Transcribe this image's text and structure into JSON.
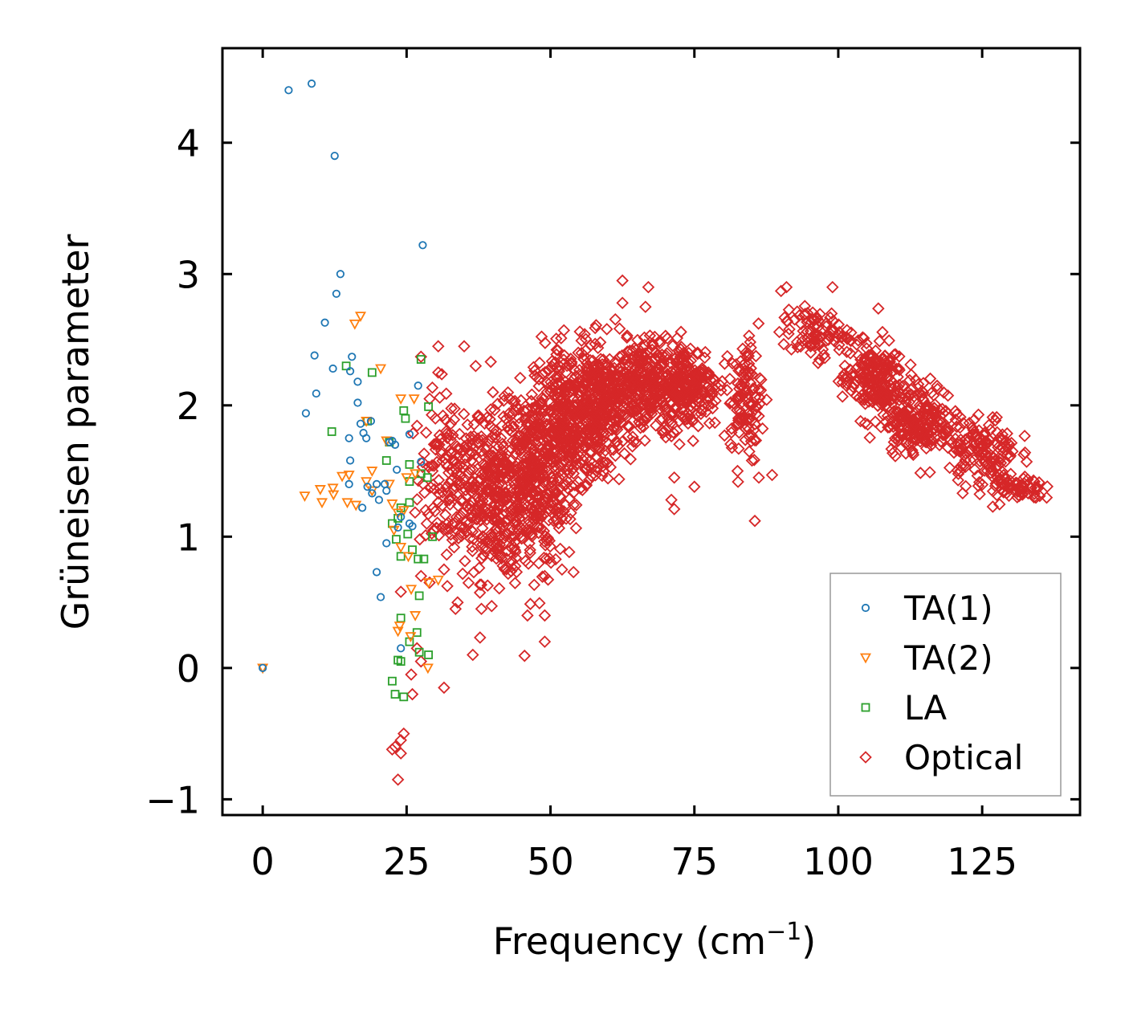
{
  "chart_data": {
    "type": "scatter",
    "title": "",
    "xlabel": "Frequency (cm",
    "xlabel_sup": "−1",
    "xlabel_close": ")",
    "ylabel": "Grüneisen parameter",
    "xlim": [
      -7,
      142
    ],
    "ylim": [
      -1.12,
      4.72
    ],
    "xticks": [
      0,
      25,
      50,
      75,
      100,
      125
    ],
    "yticks": [
      -1,
      0,
      1,
      2,
      3,
      4
    ],
    "ytick_labels": [
      "−1",
      "0",
      "1",
      "2",
      "3",
      "4"
    ],
    "legend_position": "lower-right",
    "series": [
      {
        "name": "TA(1)",
        "color": "#1f77b4",
        "marker": "circle",
        "points": [
          [
            0,
            0
          ],
          [
            4.5,
            4.4
          ],
          [
            8.5,
            4.45
          ],
          [
            12.5,
            3.9
          ],
          [
            27.8,
            3.22
          ],
          [
            13.5,
            3.0
          ],
          [
            12.8,
            2.85
          ],
          [
            10.8,
            2.63
          ],
          [
            9,
            2.38
          ],
          [
            15.5,
            2.37
          ],
          [
            12.2,
            2.28
          ],
          [
            15.2,
            2.26
          ],
          [
            16.5,
            2.18
          ],
          [
            9.3,
            2.09
          ],
          [
            16.5,
            2.02
          ],
          [
            7.5,
            1.94
          ],
          [
            18.8,
            1.88
          ],
          [
            17,
            1.86
          ],
          [
            17.5,
            1.79
          ],
          [
            18,
            1.75
          ],
          [
            15,
            1.75
          ],
          [
            22,
            1.72
          ],
          [
            23,
            1.7
          ],
          [
            22.5,
            1.73
          ],
          [
            25.5,
            1.78
          ],
          [
            15.2,
            1.58
          ],
          [
            27.5,
            1.57
          ],
          [
            23.3,
            1.51
          ],
          [
            19.8,
            1.4
          ],
          [
            21.2,
            1.4
          ],
          [
            15,
            1.4
          ],
          [
            18.2,
            1.38
          ],
          [
            21.5,
            1.35
          ],
          [
            19,
            1.33
          ],
          [
            20.2,
            1.28
          ],
          [
            17.3,
            1.22
          ],
          [
            24,
            1.15
          ],
          [
            25.5,
            1.1
          ],
          [
            26,
            1.08
          ],
          [
            23.5,
            1.07
          ],
          [
            21.5,
            0.95
          ],
          [
            19.8,
            0.73
          ],
          [
            20.5,
            0.54
          ],
          [
            24,
            0.15
          ],
          [
            27,
            2.15
          ]
        ]
      },
      {
        "name": "TA(2)",
        "color": "#ff7f0e",
        "marker": "triangle",
        "points": [
          [
            0,
            0
          ],
          [
            17,
            2.68
          ],
          [
            16,
            2.62
          ],
          [
            20.5,
            2.28
          ],
          [
            24,
            2.05
          ],
          [
            26.3,
            2.05
          ],
          [
            18,
            1.88
          ],
          [
            21.5,
            1.73
          ],
          [
            19,
            1.5
          ],
          [
            15,
            1.47
          ],
          [
            13.8,
            1.46
          ],
          [
            18,
            1.42
          ],
          [
            19,
            1.35
          ],
          [
            7.3,
            1.31
          ],
          [
            10,
            1.36
          ],
          [
            12.2,
            1.37
          ],
          [
            12.3,
            1.32
          ],
          [
            10.3,
            1.26
          ],
          [
            14.7,
            1.26
          ],
          [
            16.2,
            1.24
          ],
          [
            22.5,
            1.25
          ],
          [
            24.5,
            1.2
          ],
          [
            23.5,
            1.18
          ],
          [
            25,
            1.45
          ],
          [
            26.5,
            1.48
          ],
          [
            22,
            1.4
          ],
          [
            22.8,
            1.05
          ],
          [
            24,
            0.92
          ],
          [
            25.3,
            0.85
          ],
          [
            28.8,
            0.65
          ],
          [
            30.5,
            0.67
          ],
          [
            26.5,
            0.4
          ],
          [
            23.8,
            0.32
          ],
          [
            25.7,
            0.24
          ],
          [
            28.7,
            0.0
          ],
          [
            23.5,
            0.28
          ],
          [
            25.8,
            0.6
          ]
        ]
      },
      {
        "name": "LA",
        "color": "#2ca02c",
        "marker": "square",
        "points": [
          [
            14.5,
            2.3
          ],
          [
            19,
            2.25
          ],
          [
            27.5,
            2.35
          ],
          [
            12,
            1.8
          ],
          [
            24.5,
            1.96
          ],
          [
            24.8,
            1.9
          ],
          [
            28.8,
            1.99
          ],
          [
            18.2,
            1.88
          ],
          [
            22,
            1.72
          ],
          [
            21.5,
            1.58
          ],
          [
            25.5,
            1.55
          ],
          [
            27.5,
            1.48
          ],
          [
            28.6,
            1.45
          ],
          [
            25.5,
            1.42
          ],
          [
            24,
            1.22
          ],
          [
            25.5,
            1.26
          ],
          [
            23.5,
            1.14
          ],
          [
            22.5,
            1.1
          ],
          [
            25.2,
            1.02
          ],
          [
            23.2,
            0.98
          ],
          [
            24,
            0.85
          ],
          [
            26,
            0.9
          ],
          [
            27,
            0.83
          ],
          [
            28,
            0.83
          ],
          [
            29.5,
            1.0
          ],
          [
            27.2,
            0.55
          ],
          [
            24,
            0.38
          ],
          [
            26.8,
            0.27
          ],
          [
            25.5,
            0.2
          ],
          [
            27.2,
            0.12
          ],
          [
            28.8,
            0.1
          ],
          [
            24,
            0.05
          ],
          [
            23.5,
            0.06
          ],
          [
            22.5,
            -0.1
          ],
          [
            23,
            -0.2
          ],
          [
            24.5,
            -0.22
          ]
        ]
      },
      {
        "name": "Optical",
        "color": "#d62728",
        "marker": "diamond",
        "dense_regions": [
          {
            "x": 33,
            "y": 1.45,
            "sx": 4,
            "sy": 0.42,
            "n": 170
          },
          {
            "x": 41,
            "y": 1.3,
            "sx": 4.2,
            "sy": 0.42,
            "n": 330
          },
          {
            "x": 47,
            "y": 1.45,
            "sx": 3.5,
            "sy": 0.45,
            "n": 300
          },
          {
            "x": 53,
            "y": 1.85,
            "sx": 3.8,
            "sy": 0.4,
            "n": 380
          },
          {
            "x": 59,
            "y": 2.0,
            "sx": 3.5,
            "sy": 0.3,
            "n": 270
          },
          {
            "x": 66,
            "y": 2.15,
            "sx": 4,
            "sy": 0.24,
            "n": 270
          },
          {
            "x": 74,
            "y": 2.15,
            "sx": 3.5,
            "sy": 0.22,
            "n": 230
          },
          {
            "x": 84,
            "y": 2.05,
            "sx": 1.8,
            "sy": 0.28,
            "n": 110
          },
          {
            "x": 96,
            "y": 2.55,
            "sx": 4,
            "sy": 0.12,
            "n": 90
          },
          {
            "x": 106,
            "y": 2.2,
            "sx": 3.5,
            "sy": 0.2,
            "n": 200
          },
          {
            "x": 114,
            "y": 1.9,
            "sx": 4,
            "sy": 0.18,
            "n": 220
          },
          {
            "x": 125,
            "y": 1.65,
            "sx": 4,
            "sy": 0.18,
            "n": 140
          },
          {
            "x": 131,
            "y": 1.37,
            "sx": 3,
            "sy": 0.07,
            "n": 60
          }
        ],
        "points": [
          [
            62.5,
            2.95
          ],
          [
            67,
            2.9
          ],
          [
            62.5,
            2.78
          ],
          [
            66.5,
            2.75
          ],
          [
            99,
            2.9
          ],
          [
            91,
            2.9
          ],
          [
            30.5,
            2.45
          ],
          [
            35,
            2.45
          ],
          [
            30.5,
            2.25
          ],
          [
            37,
            2.3
          ],
          [
            40,
            2.1
          ],
          [
            27.5,
            2.37
          ],
          [
            38,
            1.65
          ],
          [
            84.5,
            2.53
          ],
          [
            85,
            1.58
          ],
          [
            85.5,
            1.12
          ],
          [
            82.5,
            1.5
          ],
          [
            86.2,
            1.45
          ],
          [
            88.5,
            1.47
          ],
          [
            75,
            1.38
          ],
          [
            71.5,
            1.45
          ],
          [
            71,
            1.28
          ],
          [
            71.5,
            1.21
          ],
          [
            38,
            0.45
          ],
          [
            49,
            0.2
          ],
          [
            33.5,
            0.45
          ],
          [
            36.5,
            0.1
          ],
          [
            31.5,
            -0.15
          ],
          [
            26,
            -0.2
          ],
          [
            25.8,
            -0.05
          ],
          [
            27.5,
            0.05
          ],
          [
            26.8,
            0.15
          ],
          [
            24.5,
            -0.5
          ],
          [
            24,
            -0.55
          ],
          [
            23,
            -0.6
          ],
          [
            22.5,
            -0.62
          ],
          [
            24,
            -0.65
          ],
          [
            23.5,
            -0.85
          ],
          [
            24,
            0.58
          ],
          [
            27.5,
            0.7
          ],
          [
            29,
            0.65
          ],
          [
            28.5,
            1.1
          ],
          [
            29.5,
            1.5
          ],
          [
            30,
            1.9
          ],
          [
            29,
            2.05
          ],
          [
            134,
            1.3
          ],
          [
            132,
            1.32
          ],
          [
            133,
            1.33
          ],
          [
            135,
            1.31
          ],
          [
            49,
            0.7
          ],
          [
            52,
            0.75
          ],
          [
            49,
            0.4
          ],
          [
            54,
            0.73
          ],
          [
            46,
            0.4
          ],
          [
            31.5,
            0.75
          ]
        ]
      }
    ]
  }
}
